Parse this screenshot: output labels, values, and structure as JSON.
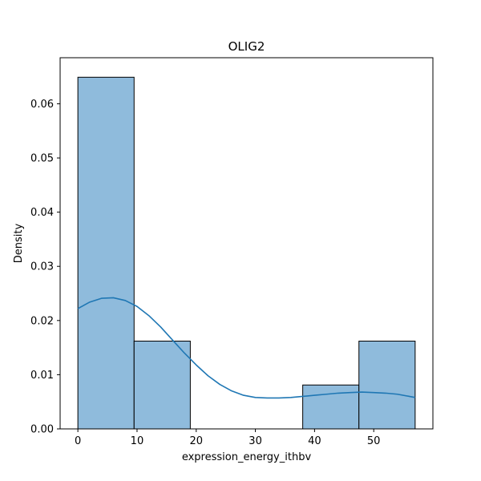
{
  "chart_data": {
    "type": "bar",
    "title": "OLIG2",
    "xlabel": "expression_energy_ithbv",
    "ylabel": "Density",
    "xlim": [
      -3,
      60
    ],
    "ylim": [
      0,
      0.0685
    ],
    "xticks": [
      0,
      10,
      20,
      30,
      40,
      50
    ],
    "yticks": [
      0.0,
      0.01,
      0.02,
      0.03,
      0.04,
      0.05,
      0.06
    ],
    "ytick_labels": [
      "0.00",
      "0.01",
      "0.02",
      "0.03",
      "0.04",
      "0.05",
      "0.06"
    ],
    "bins": [
      {
        "x0": 0.0,
        "x1": 9.5,
        "density": 0.0649
      },
      {
        "x0": 9.5,
        "x1": 19.0,
        "density": 0.0162
      },
      {
        "x0": 19.0,
        "x1": 28.5,
        "density": 0.0
      },
      {
        "x0": 28.5,
        "x1": 38.0,
        "density": 0.0
      },
      {
        "x0": 38.0,
        "x1": 47.5,
        "density": 0.0081
      },
      {
        "x0": 47.5,
        "x1": 57.0,
        "density": 0.0162
      }
    ],
    "kde": {
      "x": [
        0,
        2,
        4,
        6,
        8,
        10,
        12,
        14,
        16,
        18,
        20,
        22,
        24,
        26,
        28,
        30,
        32,
        34,
        36,
        38,
        40,
        42,
        44,
        46,
        48,
        50,
        52,
        54,
        56,
        57
      ],
      "y": [
        0.0222,
        0.0234,
        0.0241,
        0.0242,
        0.0237,
        0.0226,
        0.0209,
        0.0188,
        0.0164,
        0.014,
        0.0118,
        0.0098,
        0.0082,
        0.007,
        0.0062,
        0.0058,
        0.0057,
        0.0057,
        0.0058,
        0.006,
        0.0062,
        0.0064,
        0.0066,
        0.0067,
        0.0068,
        0.0067,
        0.0066,
        0.0064,
        0.006,
        0.0058
      ]
    },
    "colors": {
      "bar_fill": "#8fbbdc",
      "bar_edge": "#000000",
      "kde_line": "#1f77b4",
      "axes": "#000000"
    },
    "grid": false,
    "legend": "none"
  }
}
